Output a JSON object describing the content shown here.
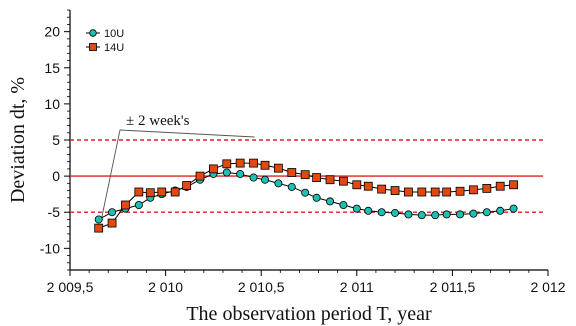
{
  "chart_data": {
    "type": "line",
    "xlabel": "The observation period T, year",
    "ylabel": "Deviation dt, %",
    "xlim": [
      2009.5,
      2012
    ],
    "ylim": [
      -13,
      23
    ],
    "x_ticks": [
      2009.5,
      2010,
      2010.5,
      2011,
      2011.5,
      2012
    ],
    "x_tick_labels": [
      "2 009,5",
      "2 010",
      "2 010,5",
      "2 011",
      "2 011,5",
      "2 012"
    ],
    "y_ticks": [
      -10,
      -5,
      0,
      5,
      10,
      15,
      20
    ],
    "y_tick_labels": [
      "-10",
      "-5",
      "0",
      "5",
      "10",
      "15",
      "20"
    ],
    "grid": false,
    "legend_position": "top-left",
    "series": [
      {
        "name": "10U",
        "color": "#1fbfb3",
        "marker": "circle",
        "x": [
          2009.65,
          2009.72,
          2009.79,
          2009.86,
          2009.92,
          2009.98,
          2010.05,
          2010.11,
          2010.18,
          2010.25,
          2010.32,
          2010.39,
          2010.46,
          2010.52,
          2010.59,
          2010.66,
          2010.73,
          2010.79,
          2010.86,
          2010.93,
          2011.0,
          2011.06,
          2011.13,
          2011.2,
          2011.27,
          2011.34,
          2011.41,
          2011.47,
          2011.54,
          2011.61,
          2011.68,
          2011.75,
          2011.82
        ],
        "y": [
          -6.0,
          -5.0,
          -4.5,
          -4.0,
          -3.0,
          -2.5,
          -2.0,
          -1.5,
          -0.5,
          0.3,
          0.5,
          0.3,
          -0.2,
          -0.5,
          -1.0,
          -1.5,
          -2.3,
          -3.0,
          -3.5,
          -4.0,
          -4.5,
          -4.8,
          -5.0,
          -5.1,
          -5.3,
          -5.4,
          -5.4,
          -5.3,
          -5.3,
          -5.2,
          -5.0,
          -4.8,
          -4.5
        ]
      },
      {
        "name": "14U",
        "color": "#e04a10",
        "marker": "square",
        "x": [
          2009.65,
          2009.72,
          2009.79,
          2009.86,
          2009.92,
          2009.98,
          2010.05,
          2010.11,
          2010.18,
          2010.25,
          2010.32,
          2010.39,
          2010.46,
          2010.52,
          2010.59,
          2010.66,
          2010.73,
          2010.79,
          2010.86,
          2010.93,
          2011.0,
          2011.06,
          2011.13,
          2011.2,
          2011.27,
          2011.34,
          2011.41,
          2011.47,
          2011.54,
          2011.61,
          2011.68,
          2011.75,
          2011.82
        ],
        "y": [
          -7.2,
          -6.5,
          -4.0,
          -2.2,
          -2.3,
          -2.2,
          -2.2,
          -1.3,
          0.0,
          1.0,
          1.7,
          1.8,
          1.8,
          1.5,
          1.1,
          0.5,
          0.2,
          -0.2,
          -0.5,
          -0.7,
          -1.2,
          -1.4,
          -1.8,
          -2.0,
          -2.2,
          -2.2,
          -2.2,
          -2.2,
          -2.1,
          -1.9,
          -1.7,
          -1.4,
          -1.2
        ]
      }
    ],
    "reference_lines": [
      {
        "y": 5,
        "style": "dashed",
        "color": "#e02020"
      },
      {
        "y": 0,
        "style": "solid",
        "color": "#e02020"
      },
      {
        "y": -5,
        "style": "dashed",
        "color": "#e02020"
      }
    ],
    "annotation": {
      "text": "± 2 week's",
      "points_to": [
        {
          "x": 2009.65,
          "y": -6.2
        },
        {
          "x": 2010.45,
          "y": 5
        }
      ]
    }
  }
}
